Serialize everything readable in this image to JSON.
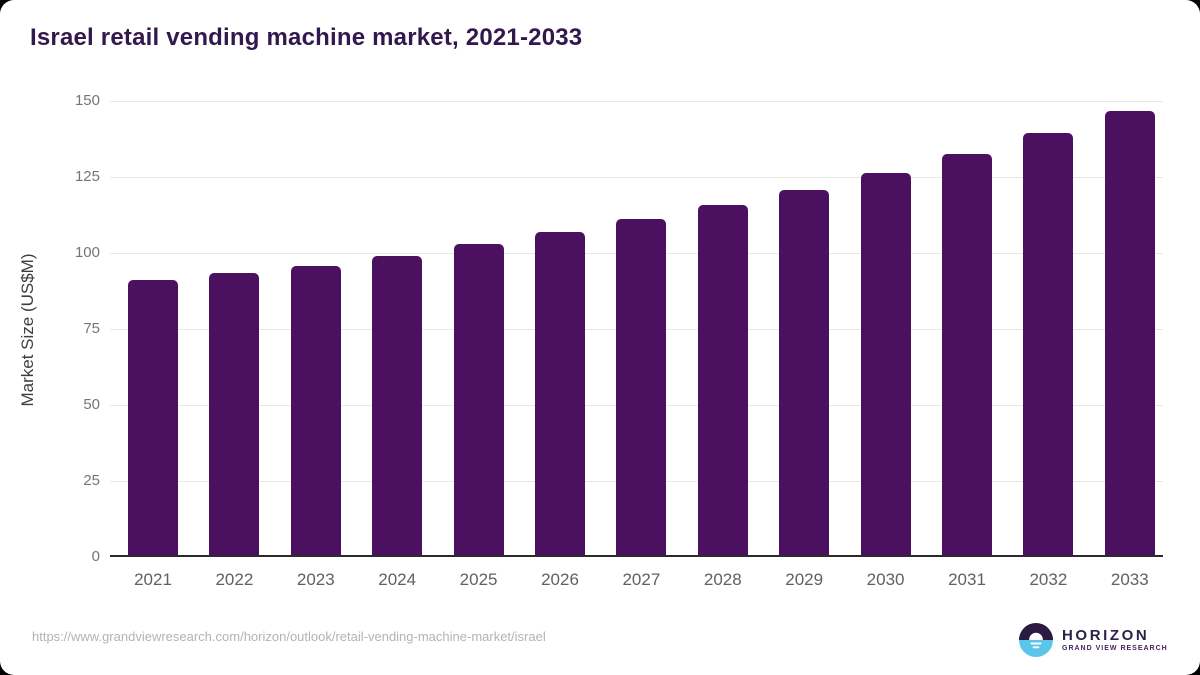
{
  "page": {
    "source_url": "https://www.grandviewresearch.com/horizon/outlook/retail-vending-machine-market/israel"
  },
  "logo": {
    "wordmark": "HORIZON",
    "subtitle": "GRAND VIEW RESEARCH"
  },
  "theme": {
    "bar_color": "#4b1160",
    "title_color": "#33184d",
    "gridline_color": "#e8e8e8",
    "axis_line_color": "#2b2b2b",
    "ytick_color": "#757575",
    "xlabel_color": "#616161",
    "url_color": "#b3b3b3",
    "logo_dark": "#2b1b43",
    "logo_blue": "#5bc5ea"
  },
  "chart_data": {
    "type": "bar",
    "title": "Israel retail vending machine market, 2021-2033",
    "categories": [
      "2021",
      "2022",
      "2023",
      "2024",
      "2025",
      "2026",
      "2027",
      "2028",
      "2029",
      "2030",
      "2031",
      "2032",
      "2033"
    ],
    "values": [
      91,
      93.5,
      95.7,
      99.1,
      102.9,
      106.8,
      111.1,
      115.8,
      120.7,
      126.4,
      132.6,
      139.4,
      146.8
    ],
    "xlabel": "",
    "ylabel": "Market Size (US$M)",
    "ylim": [
      0,
      150
    ],
    "yticks": [
      0,
      25,
      50,
      75,
      100,
      125,
      150
    ],
    "grid": true,
    "legend": "none"
  }
}
